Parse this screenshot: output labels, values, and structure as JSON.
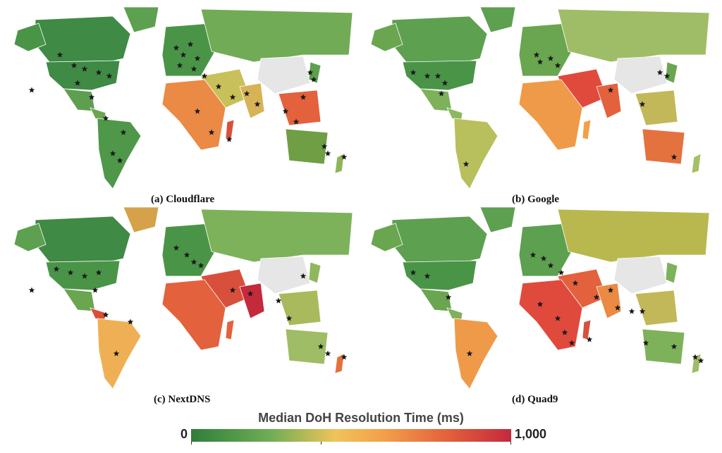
{
  "panels": [
    {
      "id": "a",
      "caption": "(a) Cloudflare"
    },
    {
      "id": "b",
      "caption": "(b) Google"
    },
    {
      "id": "c",
      "caption": "(c) NextDNS"
    },
    {
      "id": "d",
      "caption": "(d) Quad9"
    }
  ],
  "legend": {
    "title": "Median DoH Resolution Time (ms)",
    "min_label": "0",
    "max_label": "1,000",
    "colors": [
      "#2f7d3c",
      "#6fae54",
      "#f0c35a",
      "#f3a04a",
      "#e3613c",
      "#c4293c"
    ]
  },
  "no_data_color": "#e6e6e6",
  "marker": "star-icon"
}
